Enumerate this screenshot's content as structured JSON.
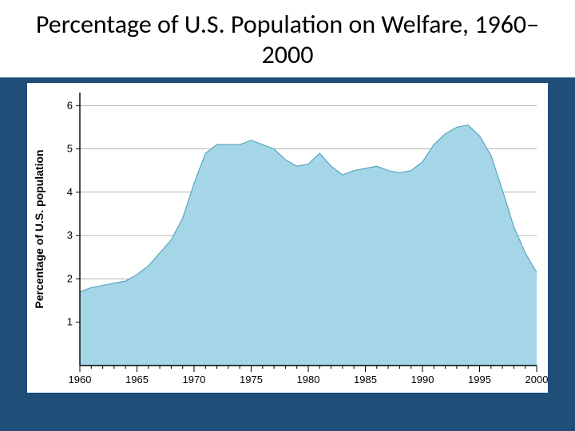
{
  "slide": {
    "title": "Percentage of U.S. Population on Welfare, 1960– 2000",
    "background_color": "#1f4e79",
    "title_fontsize": 32,
    "title_color": "#000000"
  },
  "chart": {
    "type": "area",
    "ylabel": "Percentage of U.S. population",
    "ylabel_fontsize": 14,
    "ylabel_fontweight": "bold",
    "background_color": "#ffffff",
    "plot_background": "#ffffff",
    "series_fill": "#a5d6e7",
    "series_stroke": "#5aa6bf",
    "grid_color": "#888888",
    "grid_width": 0.6,
    "axis_color": "#000000",
    "tick_fontsize": 13,
    "xlim": [
      1960,
      2000
    ],
    "ylim": [
      0,
      6.3
    ],
    "yticks": [
      1,
      2,
      3,
      4,
      5,
      6
    ],
    "xticks_major": [
      1960,
      1965,
      1970,
      1975,
      1980,
      1985,
      1990,
      1995,
      2000
    ],
    "xticks_minor_step": 1,
    "data": {
      "x": [
        1960,
        1961,
        1962,
        1963,
        1964,
        1965,
        1966,
        1967,
        1968,
        1969,
        1970,
        1971,
        1972,
        1973,
        1974,
        1975,
        1976,
        1977,
        1978,
        1979,
        1980,
        1981,
        1982,
        1983,
        1984,
        1985,
        1986,
        1987,
        1988,
        1989,
        1990,
        1991,
        1992,
        1993,
        1994,
        1995,
        1996,
        1997,
        1998,
        1999,
        2000
      ],
      "y": [
        1.7,
        1.8,
        1.85,
        1.9,
        1.95,
        2.1,
        2.3,
        2.6,
        2.9,
        3.4,
        4.2,
        4.9,
        5.1,
        5.1,
        5.1,
        5.2,
        5.1,
        5.0,
        4.75,
        4.6,
        4.65,
        4.9,
        4.6,
        4.4,
        4.5,
        4.55,
        4.6,
        4.5,
        4.45,
        4.5,
        4.7,
        5.1,
        5.35,
        5.5,
        5.55,
        5.3,
        4.85,
        4.05,
        3.2,
        2.6,
        2.15
      ]
    }
  }
}
